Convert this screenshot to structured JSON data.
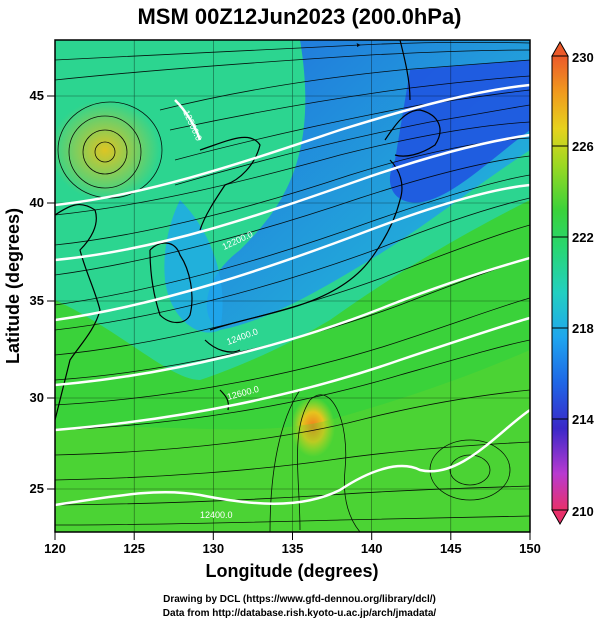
{
  "title": "MSM 00Z12Jun2023 (200.0hPa)",
  "xlabel": "Longitude (degrees)",
  "ylabel": "Latitude  (degrees)",
  "credits": {
    "line1": "Drawing by DCL (https://www.gfd-dennou.org/library/dcl/)",
    "line2": "Data from http://database.rish.kyoto-u.ac.jp/arch/jmadata/"
  },
  "x_ticks": [
    "120",
    "125",
    "130",
    "135",
    "140",
    "145",
    "150"
  ],
  "y_ticks": [
    "25",
    "30",
    "35",
    "40",
    "45"
  ],
  "colorbar": {
    "min": 210,
    "max": 230,
    "labels": [
      "230",
      "226",
      "222",
      "218",
      "214",
      "210"
    ],
    "colors": [
      "#e8306a",
      "#d83aa8",
      "#8a2bd0",
      "#2a32d8",
      "#1f7de6",
      "#22c4e0",
      "#28d68a",
      "#33d24a",
      "#7cd22a",
      "#c4de22",
      "#f0c81e",
      "#f08c1e",
      "#ec5a2a"
    ]
  },
  "contour_labels": [
    "12200.0",
    "12400.0",
    "12600.0",
    "12400.0",
    "12500.0"
  ],
  "chart_data": {
    "type": "heatmap",
    "title": "MSM 00Z12Jun2023 (200.0hPa)",
    "xlabel": "Longitude (degrees)",
    "ylabel": "Latitude  (degrees)",
    "xlim": [
      120,
      150
    ],
    "ylim": [
      22.4,
      47.6
    ],
    "colorbar_range": [
      210,
      230
    ],
    "grid": true,
    "features": [
      "temperature shading",
      "geopotential height contours (white)",
      "wind streamlines (black)",
      "coastlines"
    ],
    "approx_field": [
      {
        "lon": 123,
        "lat": 42.5,
        "value": 224,
        "note": "warm vortex"
      },
      {
        "lon": 136,
        "lat": 28.5,
        "value": 227,
        "note": "warm spot"
      },
      {
        "lon": 147,
        "lat": 44,
        "value": 215,
        "note": "cold region"
      },
      {
        "lon": 131,
        "lat": 38,
        "value": 218
      }
    ]
  }
}
